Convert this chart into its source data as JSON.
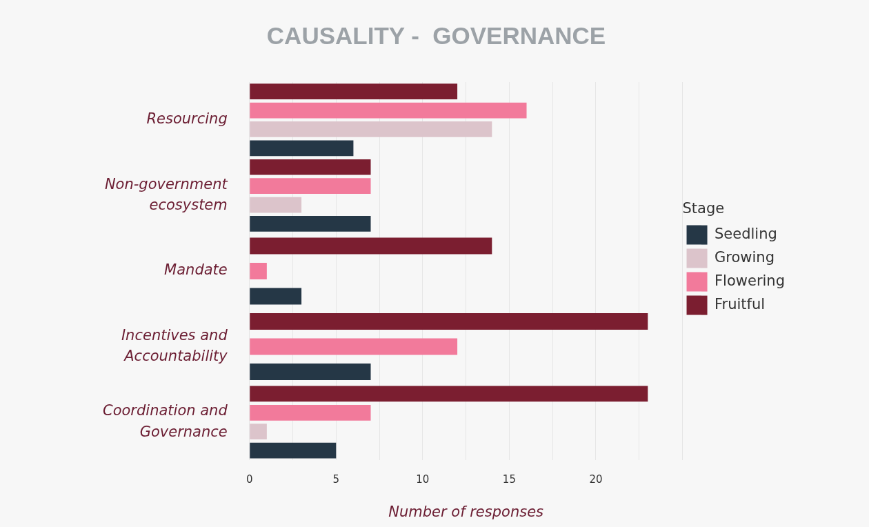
{
  "chart_data": {
    "type": "bar",
    "orientation": "horizontal",
    "title": "CAUSALITY -  GOVERNANCE",
    "xlabel": "Number of responses",
    "legend_title": "Stage",
    "categories": [
      "Resourcing",
      "Non-government ecosystem",
      "Mandate",
      "Incentives and Accountability",
      "Coordination and Governance"
    ],
    "series": [
      {
        "name": "Seedling",
        "color": "#253746",
        "values": [
          6,
          7,
          3,
          7,
          5
        ]
      },
      {
        "name": "Growing",
        "color": "#dcc4cb",
        "values": [
          14,
          3,
          null,
          null,
          1
        ]
      },
      {
        "name": "Flowering",
        "color": "#f27a9b",
        "values": [
          16,
          7,
          1,
          12,
          7
        ]
      },
      {
        "name": "Fruitful",
        "color": "#7b1e30",
        "values": [
          12,
          7,
          14,
          23,
          23
        ]
      }
    ],
    "xlim": [
      0,
      25
    ],
    "xticks": [
      0,
      {
        "value": 2.5,
        "label": null
      },
      5,
      {
        "value": 7.5,
        "label": null
      },
      10,
      {
        "value": 12.5,
        "label": null
      },
      15,
      {
        "value": 17.5,
        "label": null
      },
      20,
      {
        "value": 22.5,
        "label": null
      },
      {
        "value": 25,
        "label": null
      }
    ],
    "grid": "x",
    "legend": "right"
  }
}
